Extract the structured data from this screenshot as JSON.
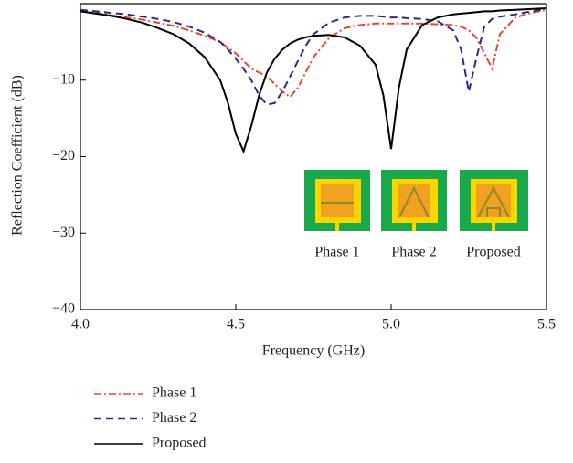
{
  "chart_data": {
    "type": "line",
    "xlabel": "Frequency (GHz)",
    "ylabel": "Reflection Coefficient (dB)",
    "x": [
      4.0,
      4.05,
      4.1,
      4.15,
      4.2,
      4.25,
      4.3,
      4.35,
      4.4,
      4.45,
      4.475,
      4.5,
      4.525,
      4.55,
      4.575,
      4.6,
      4.625,
      4.65,
      4.675,
      4.7,
      4.725,
      4.75,
      4.8,
      4.85,
      4.9,
      4.95,
      4.975,
      5.0,
      5.025,
      5.05,
      5.1,
      5.15,
      5.2,
      5.225,
      5.25,
      5.275,
      5.3,
      5.325,
      5.35,
      5.4,
      5.45,
      5.5
    ],
    "series": [
      {
        "name": "Phase 1",
        "color": "#e8482a",
        "dash": "8,3,2,3",
        "values": [
          -1,
          -1.2,
          -1.5,
          -1.8,
          -2.1,
          -2.5,
          -2.9,
          -3.5,
          -4.2,
          -5,
          -5.8,
          -6.5,
          -7.5,
          -8.5,
          -9,
          -9.5,
          -10.5,
          -11.5,
          -12.2,
          -11,
          -9,
          -7,
          -4.5,
          -3.2,
          -2.8,
          -2.6,
          -2.6,
          -2.6,
          -2.6,
          -2.6,
          -2.6,
          -2.7,
          -2.8,
          -3,
          -3.5,
          -4.5,
          -6.5,
          -8.5,
          -4,
          -1.8,
          -1.2,
          -0.8
        ]
      },
      {
        "name": "Phase 2",
        "color": "#2b2a8c",
        "dash": "8,5",
        "values": [
          -0.8,
          -1,
          -1.2,
          -1.4,
          -1.7,
          -2,
          -2.4,
          -3,
          -3.8,
          -5,
          -6,
          -7.2,
          -8.5,
          -10,
          -12,
          -13.2,
          -13,
          -11.5,
          -9.5,
          -7.5,
          -5.5,
          -4,
          -2.5,
          -1.8,
          -1.6,
          -1.6,
          -1.7,
          -1.8,
          -1.8,
          -1.9,
          -2,
          -2.3,
          -3.5,
          -6,
          -11.5,
          -7,
          -3,
          -2,
          -1.7,
          -1.4,
          -1,
          -0.7
        ]
      },
      {
        "name": "Proposed",
        "color": "#000000",
        "dash": "none",
        "values": [
          -1,
          -1.3,
          -1.6,
          -2,
          -2.5,
          -3.2,
          -4,
          -5.2,
          -7,
          -10,
          -13,
          -17,
          -19.3,
          -16,
          -12,
          -9,
          -7.2,
          -6,
          -5.2,
          -4.7,
          -4.4,
          -4.2,
          -4.1,
          -4.4,
          -5.5,
          -8,
          -12,
          -19,
          -11,
          -6,
          -2.8,
          -1.8,
          -1.4,
          -1.3,
          -1.2,
          -1.1,
          -1,
          -1,
          -0.9,
          -0.8,
          -0.7,
          -0.6
        ]
      }
    ],
    "xlim": [
      4.0,
      5.5
    ],
    "xticks": [
      {
        "value": 4.0,
        "label": "4.0"
      },
      4.5,
      {
        "value": 5.0,
        "label": "5.0"
      },
      5.5
    ],
    "ylim": [
      -40,
      0
    ],
    "yticks": [
      {
        "value": -40,
        "label": "−40"
      },
      {
        "value": -30,
        "label": "−30"
      },
      {
        "value": -20,
        "label": "−20"
      },
      {
        "value": -10,
        "label": "−10"
      }
    ],
    "inset_labels": [
      "Phase 1",
      "Phase 2",
      "Proposed"
    ]
  }
}
